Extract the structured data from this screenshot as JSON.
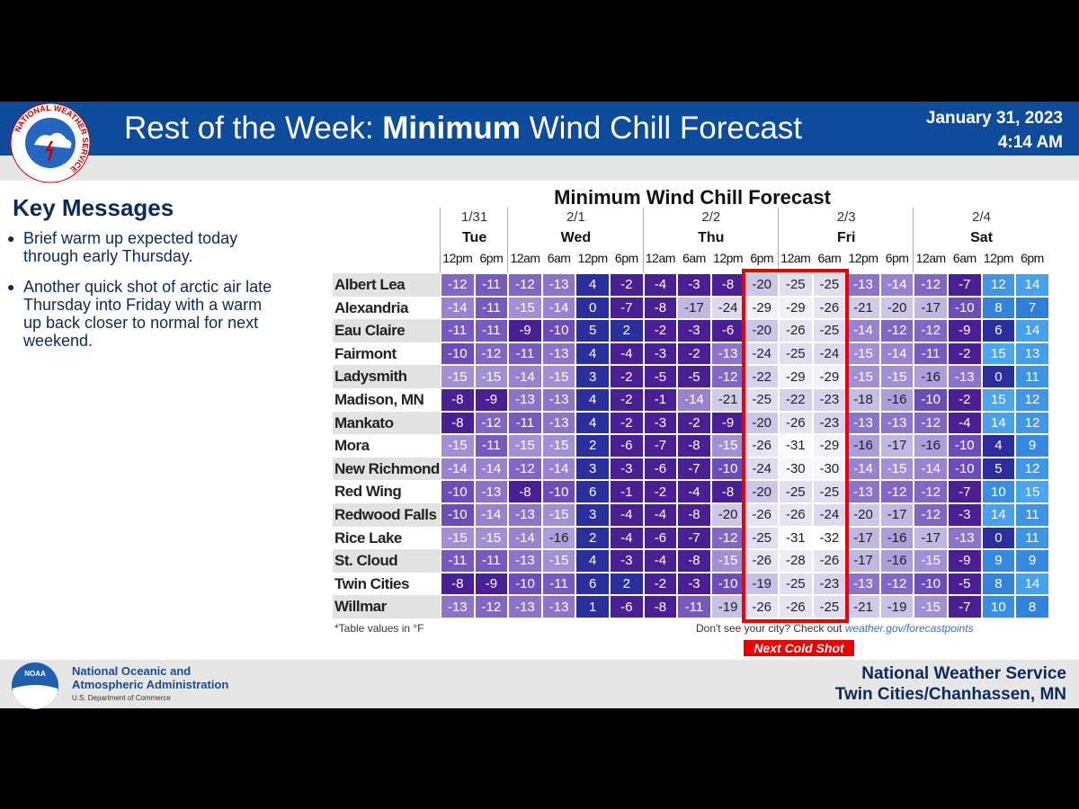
{
  "header": {
    "title_prefix": "Rest of the Week: ",
    "title_bold": "Minimum",
    "title_suffix": " Wind Chill Forecast",
    "date": "January 31, 2023",
    "time": "4:14 AM",
    "logo_text": "NATIONAL WEATHER SERVICE"
  },
  "key_messages": {
    "title": "Key Messages",
    "items": [
      "Brief warm up expected today through early Thursday.",
      "Another quick shot of arctic air late Thursday into Friday with a warm up back closer to normal for next weekend."
    ]
  },
  "table": {
    "title": "Minimum Wind Chill Forecast",
    "days": [
      {
        "date": "1/31",
        "day": "Tue",
        "times": [
          "12pm",
          "6pm"
        ]
      },
      {
        "date": "2/1",
        "day": "Wed",
        "times": [
          "12am",
          "6am",
          "12pm",
          "6pm"
        ]
      },
      {
        "date": "2/2",
        "day": "Thu",
        "times": [
          "12am",
          "6am",
          "12pm",
          "6pm"
        ]
      },
      {
        "date": "2/3",
        "day": "Fri",
        "times": [
          "12am",
          "6am",
          "12pm",
          "6pm"
        ]
      },
      {
        "date": "2/4",
        "day": "Sat",
        "times": [
          "12am",
          "6am",
          "12pm",
          "6pm"
        ]
      }
    ],
    "rows": [
      {
        "city": "Albert Lea",
        "values": [
          -12,
          -11,
          -12,
          -13,
          4,
          -2,
          -4,
          -3,
          -8,
          -20,
          -25,
          -25,
          -13,
          -14,
          -12,
          -7,
          12,
          14
        ]
      },
      {
        "city": "Alexandria",
        "values": [
          -14,
          -11,
          -15,
          -14,
          0,
          -7,
          -8,
          -17,
          -24,
          -29,
          -29,
          -26,
          -21,
          -20,
          -17,
          -10,
          8,
          7
        ]
      },
      {
        "city": "Eau Claire",
        "values": [
          -11,
          -11,
          -9,
          -10,
          5,
          2,
          -2,
          -3,
          -6,
          -20,
          -26,
          -25,
          -14,
          -12,
          -12,
          -9,
          6,
          14
        ]
      },
      {
        "city": "Fairmont",
        "values": [
          -10,
          -12,
          -11,
          -13,
          4,
          -4,
          -3,
          -2,
          -13,
          -24,
          -25,
          -24,
          -15,
          -14,
          -11,
          -2,
          15,
          13
        ]
      },
      {
        "city": "Ladysmith",
        "values": [
          -15,
          -15,
          -14,
          -15,
          3,
          -2,
          -5,
          -5,
          -12,
          -22,
          -29,
          -29,
          -15,
          -15,
          -16,
          -13,
          0,
          11
        ]
      },
      {
        "city": "Madison, MN",
        "values": [
          -8,
          -9,
          -13,
          -13,
          4,
          -2,
          -1,
          -14,
          -21,
          -25,
          -22,
          -23,
          -18,
          -16,
          -10,
          -2,
          15,
          12
        ]
      },
      {
        "city": "Mankato",
        "values": [
          -8,
          -12,
          -11,
          -13,
          4,
          -2,
          -3,
          -2,
          -9,
          -20,
          -26,
          -23,
          -13,
          -13,
          -12,
          -4,
          14,
          12
        ]
      },
      {
        "city": "Mora",
        "values": [
          -15,
          -11,
          -15,
          -15,
          2,
          -6,
          -7,
          -8,
          -15,
          -26,
          -31,
          -29,
          -16,
          -17,
          -16,
          -10,
          4,
          9
        ]
      },
      {
        "city": "New Richmond",
        "values": [
          -14,
          -14,
          -12,
          -14,
          3,
          -3,
          -6,
          -7,
          -10,
          -24,
          -30,
          -30,
          -14,
          -15,
          -14,
          -10,
          5,
          12
        ]
      },
      {
        "city": "Red Wing",
        "values": [
          -10,
          -13,
          -8,
          -10,
          6,
          -1,
          -2,
          -4,
          -8,
          -20,
          -25,
          -25,
          -13,
          -12,
          -12,
          -7,
          10,
          15
        ]
      },
      {
        "city": "Redwood Falls",
        "values": [
          -10,
          -14,
          -13,
          -15,
          3,
          -4,
          -4,
          -8,
          -20,
          -26,
          -26,
          -24,
          -20,
          -17,
          -12,
          -3,
          14,
          11
        ]
      },
      {
        "city": "Rice Lake",
        "values": [
          -15,
          -15,
          -14,
          -16,
          2,
          -4,
          -6,
          -7,
          -12,
          -25,
          -31,
          -32,
          -17,
          -16,
          -17,
          -13,
          0,
          11
        ]
      },
      {
        "city": "St. Cloud",
        "values": [
          -11,
          -11,
          -13,
          -15,
          4,
          -3,
          -4,
          -8,
          -15,
          -26,
          -28,
          -26,
          -17,
          -16,
          -15,
          -9,
          9,
          9
        ]
      },
      {
        "city": "Twin Cities",
        "values": [
          -8,
          -9,
          -10,
          -11,
          6,
          2,
          -2,
          -3,
          -10,
          -19,
          -25,
          -23,
          -13,
          -12,
          -10,
          -5,
          8,
          14
        ]
      },
      {
        "city": "Willmar",
        "values": [
          -13,
          -12,
          -13,
          -13,
          1,
          -6,
          -8,
          -11,
          -19,
          -26,
          -26,
          -25,
          -21,
          -19,
          -15,
          -7,
          10,
          8
        ]
      }
    ],
    "note": "*Table values in °F",
    "link_prefix": "Don't see your city? Check out ",
    "link": "weather.gov/forecastpoints",
    "highlight_label": "Next Cold Shot"
  },
  "footer": {
    "noaa_logo": "NOAA",
    "noaa_line1": "National Oceanic and",
    "noaa_line2": "Atmospheric Administration",
    "noaa_sub": "U.S. Department of Commerce",
    "nws_line1": "National Weather Service",
    "nws_line2": "Twin Cities/Chanhassen, MN"
  }
}
